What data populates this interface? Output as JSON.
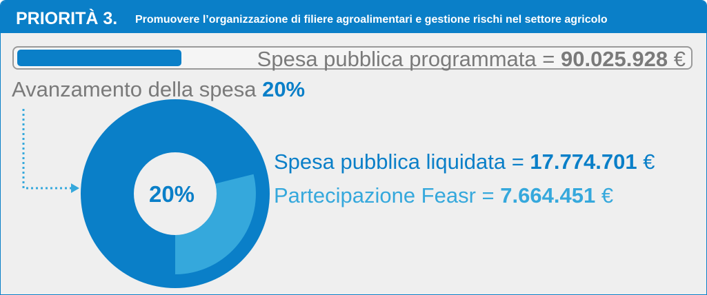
{
  "header": {
    "label": "PRIORITÀ 3.",
    "title": "Promuovere l’organizzazione di filiere agroalimentari e gestione rischi nel settore agricolo"
  },
  "programmata": {
    "label": "Spesa pubblica programmata =",
    "amount": "90.025.928",
    "currency": "€"
  },
  "avanzamento": {
    "label": "Avanzamento della spesa",
    "value": "20%"
  },
  "donut_label": "20%",
  "liquidata": {
    "label": "Spesa pubblica liquidata =",
    "amount": "17.774.701",
    "currency": "€"
  },
  "feasr": {
    "label": "Partecipazione Feasr =",
    "amount": "7.664.451",
    "currency": "€"
  }
}
